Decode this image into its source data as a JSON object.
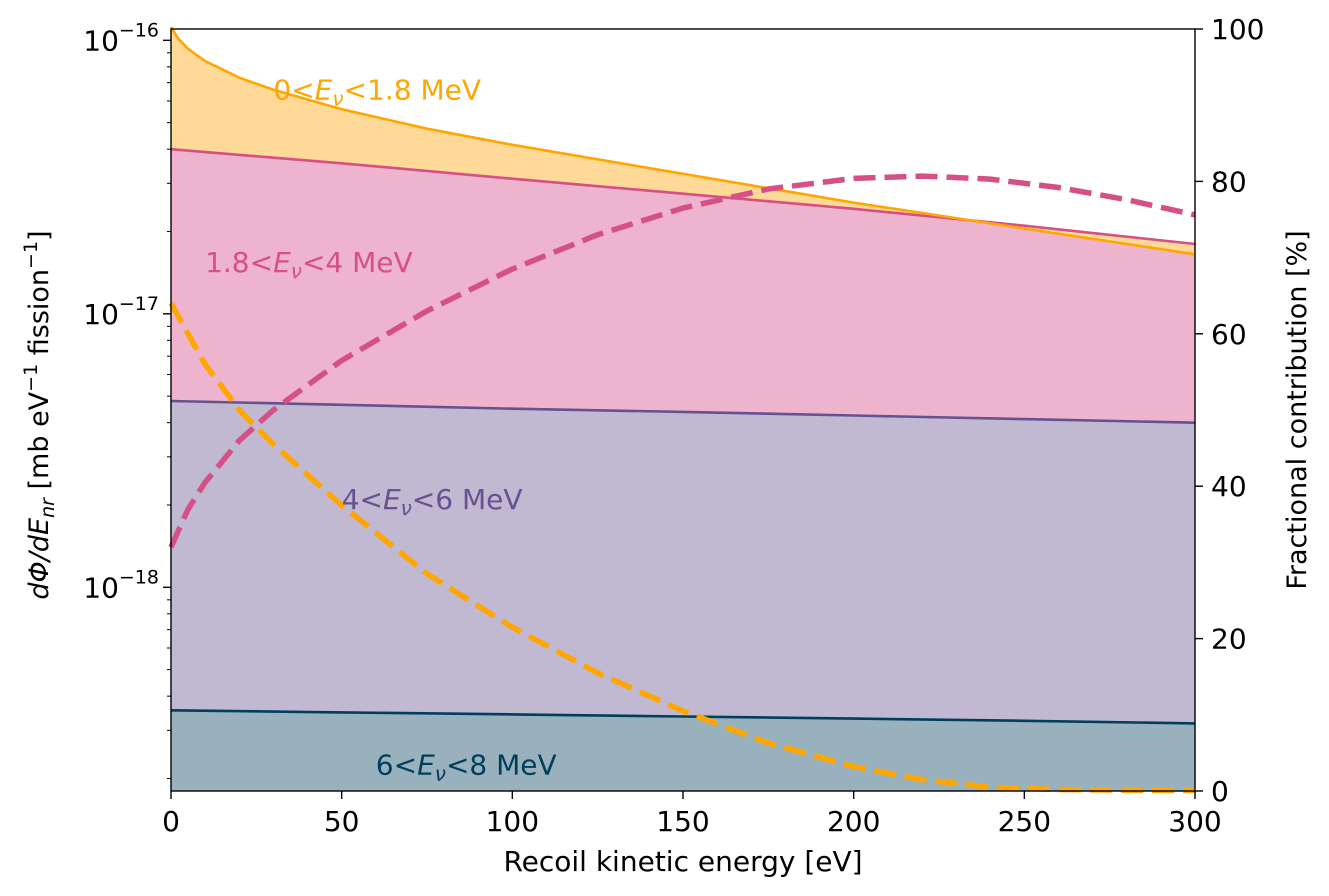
{
  "chart_data": {
    "type": "area",
    "x_axis": {
      "label": "Recoil kinetic energy [eV]",
      "range": [
        0,
        300
      ],
      "ticks": [
        0,
        50,
        100,
        150,
        200,
        250,
        300
      ]
    },
    "y_left": {
      "label_prefix": "dΦ/dE",
      "label_sub": "nr",
      "label_unit": " [mb eV",
      "label_unit_sup": "−1",
      "label_unit2": " fission",
      "label_unit2_sup": "−1",
      "label_close": "]",
      "scale": "log",
      "range": [
        1.8e-19,
        1.1e-16
      ],
      "ticks": [
        {
          "value": 1e-16,
          "base": "10",
          "exp": "−16"
        },
        {
          "value": 1e-17,
          "base": "10",
          "exp": "−17"
        },
        {
          "value": 1e-18,
          "base": "10",
          "exp": "−18"
        }
      ]
    },
    "y_right": {
      "label": "Fractional contribution [%]",
      "range": [
        0,
        100
      ],
      "ticks": [
        0,
        20,
        40,
        60,
        80,
        100
      ]
    },
    "stacked_series": [
      {
        "name_pre": "6<",
        "name_sym": "E",
        "name_sub": "ν",
        "name_post": "<8 MeV",
        "line_color": "#003f5c",
        "fill_color": "#99b1bd",
        "label_anchor": {
          "x": 60,
          "y": 2.25e-19
        },
        "x": [
          0,
          50,
          100,
          150,
          200,
          250,
          300
        ],
        "top": [
          3.55e-19,
          3.49e-19,
          3.43e-19,
          3.37e-19,
          3.31e-19,
          3.25e-19,
          3.18e-19
        ]
      },
      {
        "name_pre": "4<",
        "name_sym": "E",
        "name_sub": "ν",
        "name_post": "<6 MeV",
        "line_color": "#665191",
        "fill_color": "#c1b8d2",
        "label_anchor": {
          "x": 50,
          "y": 2.1e-18
        },
        "x": [
          0,
          50,
          100,
          150,
          200,
          250,
          300
        ],
        "top": [
          4.8e-18,
          4.65e-18,
          4.5e-18,
          4.38e-18,
          4.25e-18,
          4.12e-18,
          4e-18
        ]
      },
      {
        "name_pre": "1.8<",
        "name_sym": "E",
        "name_sub": "ν",
        "name_post": "<4 MeV",
        "line_color": "#d45087",
        "fill_color": "#eeb4cd",
        "label_anchor": {
          "x": 10,
          "y": 1.55e-17
        },
        "x": [
          0,
          50,
          100,
          150,
          200,
          250,
          300
        ],
        "top": [
          4e-17,
          3.55e-17,
          3.12e-17,
          2.75e-17,
          2.42e-17,
          2.1e-17,
          1.8e-17
        ]
      },
      {
        "name_pre": "0<",
        "name_sym": "E",
        "name_sub": "ν",
        "name_post": "<1.8 MeV",
        "line_color": "#ffa600",
        "fill_color": "#fed998",
        "label_anchor": {
          "x": 30,
          "y": 6.6e-17
        },
        "x": [
          0,
          2,
          5,
          10,
          20,
          30,
          50,
          75,
          100,
          150,
          200,
          250,
          300
        ],
        "top": [
          1.12e-16,
          1.02e-16,
          9.3e-17,
          8.4e-17,
          7.3e-17,
          6.6e-17,
          5.6e-17,
          4.75e-17,
          4.15e-17,
          3.25e-17,
          2.55e-17,
          2.05e-17,
          1.65e-17
        ]
      }
    ],
    "fraction_series": [
      {
        "name": "0<Eν<1.8 MeV fraction",
        "color": "#ffa600",
        "dashed": true,
        "x": [
          0,
          10,
          20,
          30,
          50,
          75,
          100,
          125,
          150,
          175,
          200,
          220,
          240,
          260,
          280,
          300
        ],
        "y": [
          64,
          56,
          50,
          45.5,
          37.5,
          28.5,
          21.5,
          15.5,
          10.5,
          6.3,
          3.2,
          1.5,
          0.5,
          0.2,
          0.1,
          0.1
        ]
      },
      {
        "name": "1.8<Eν<4 MeV fraction",
        "color": "#d45087",
        "dashed": true,
        "x": [
          0,
          5,
          10,
          20,
          30,
          50,
          75,
          100,
          125,
          150,
          175,
          200,
          220,
          240,
          260,
          280,
          300
        ],
        "y": [
          32,
          37,
          40.5,
          46,
          50,
          56.5,
          63,
          68.5,
          73,
          76.5,
          79,
          80.4,
          80.7,
          80.3,
          79.2,
          77.6,
          75.6
        ]
      }
    ]
  }
}
